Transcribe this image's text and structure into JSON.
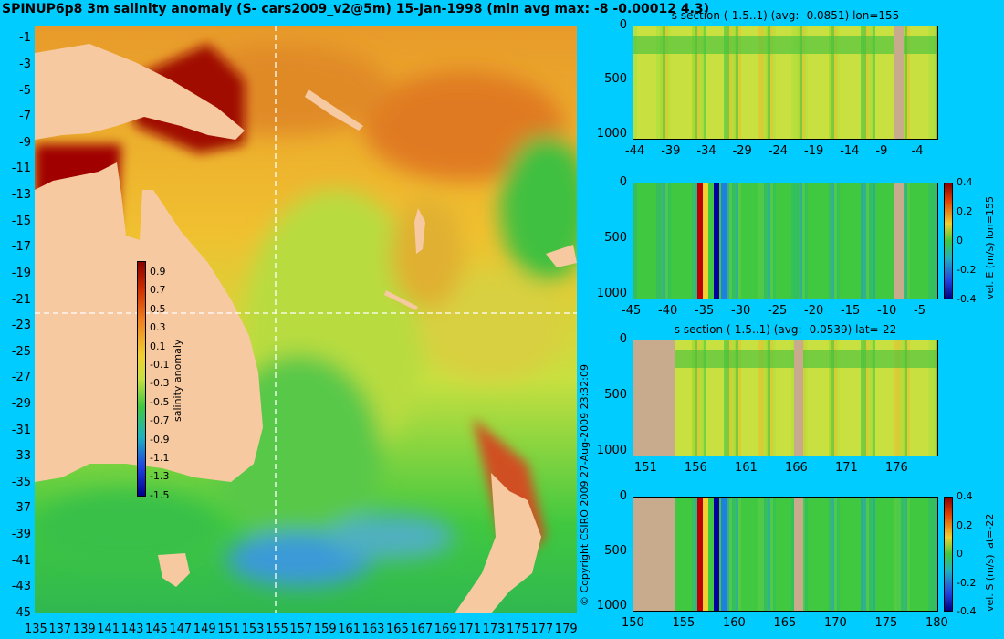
{
  "title": "SPINUP6p8 3m salinity anomaly (S- cars2009_v2@5m) 15-Jan-1998 (min avg max: -8 -0.00012 4.3)",
  "copyright": "© Copyright CSIRO 2009  27-Aug-2009 23:32:09",
  "colors": {
    "background": "#00ccff",
    "land": "#f7c9a1",
    "section_land": "#c8aa8c",
    "dashed_line": "#ffffff"
  },
  "map": {
    "lon_ticks": [
      "135",
      "137",
      "139",
      "141",
      "143",
      "145",
      "147",
      "149",
      "151",
      "153",
      "155",
      "157",
      "159",
      "161",
      "163",
      "165",
      "167",
      "169",
      "171",
      "173",
      "175",
      "177",
      "179"
    ],
    "lat_ticks": [
      "-1",
      "-3",
      "-5",
      "-7",
      "-9",
      "-11",
      "-13",
      "-15",
      "-17",
      "-19",
      "-21",
      "-23",
      "-25",
      "-27",
      "-29",
      "-31",
      "-33",
      "-35",
      "-37",
      "-39",
      "-41",
      "-43",
      "-45"
    ],
    "colorbar": {
      "label": "salinity anomaly",
      "ticks": [
        "0.9",
        "0.7",
        "0.5",
        "0.3",
        "0.1",
        "-0.1",
        "-0.3",
        "-0.5",
        "-0.7",
        "-0.9",
        "-1.1",
        "-1.3",
        "-1.5"
      ]
    }
  },
  "sections": [
    {
      "title": "s section (-1.5..1) (avg: -0.0851) lon=155",
      "y_ticks": [
        "0",
        "500",
        "1000"
      ],
      "x_ticks": [
        "-44",
        "-39",
        "-34",
        "-29",
        "-24",
        "-19",
        "-14",
        "-9",
        "-4"
      ],
      "cb": null
    },
    {
      "title": "",
      "y_ticks": [
        "0",
        "500",
        "1000"
      ],
      "x_ticks": [
        "-45",
        "-40",
        "-35",
        "-30",
        "-25",
        "-20",
        "-15",
        "-10",
        "-5"
      ],
      "cb": {
        "label": "vel. E (m/s) lon=155",
        "ticks": [
          "0.4",
          "0.2",
          "0",
          "-0.2",
          "-0.4"
        ]
      }
    },
    {
      "title": "s section (-1.5..1) (avg: -0.0539) lat=-22",
      "y_ticks": [
        "0",
        "500",
        "1000"
      ],
      "x_ticks": [
        "151",
        "156",
        "161",
        "166",
        "171",
        "176"
      ],
      "cb": null
    },
    {
      "title": "",
      "y_ticks": [
        "0",
        "500",
        "1000"
      ],
      "x_ticks": [
        "150",
        "155",
        "160",
        "165",
        "170",
        "175",
        "180"
      ],
      "cb": {
        "label": "vel. S (m/s) lat=-22",
        "ticks": [
          "0.4",
          "0.2",
          "0",
          "-0.2",
          "-0.4"
        ]
      }
    }
  ],
  "chart_data": [
    {
      "type": "heatmap",
      "title": "SPINUP6p8 3m salinity anomaly (S- cars2009_v2@5m) 15-Jan-1998 (min avg max: -8 -0.00012 4.3)",
      "xlabel": "",
      "ylabel": "",
      "xlim": [
        135,
        180
      ],
      "ylim": [
        -45,
        0
      ],
      "colorbar": {
        "label": "salinity anomaly",
        "range": [
          -1.5,
          1
        ]
      },
      "stats": {
        "min": -8,
        "avg": -0.00012,
        "max": 4.3
      },
      "section_lines": {
        "lon": 155,
        "lat": -22
      }
    },
    {
      "type": "heatmap",
      "title": "s section (-1.5..1) (avg: -0.0851) lon=155",
      "xlim": [
        -45,
        0
      ],
      "ylim": [
        1050,
        0
      ],
      "avg": -0.0851
    },
    {
      "type": "heatmap",
      "title": "",
      "xlim": [
        -45,
        0
      ],
      "ylim": [
        1050,
        0
      ],
      "colorbar": {
        "label": "vel. E (m/s) lon=155",
        "range": [
          -0.4,
          0.4
        ]
      }
    },
    {
      "type": "heatmap",
      "title": "s section (-1.5..1) (avg: -0.0539) lat=-22",
      "xlim": [
        150,
        180
      ],
      "ylim": [
        1050,
        0
      ],
      "avg": -0.0539
    },
    {
      "type": "heatmap",
      "title": "",
      "xlim": [
        150,
        180
      ],
      "ylim": [
        1050,
        0
      ],
      "colorbar": {
        "label": "vel. S (m/s) lat=-22",
        "range": [
          -0.4,
          0.4
        ]
      }
    }
  ]
}
